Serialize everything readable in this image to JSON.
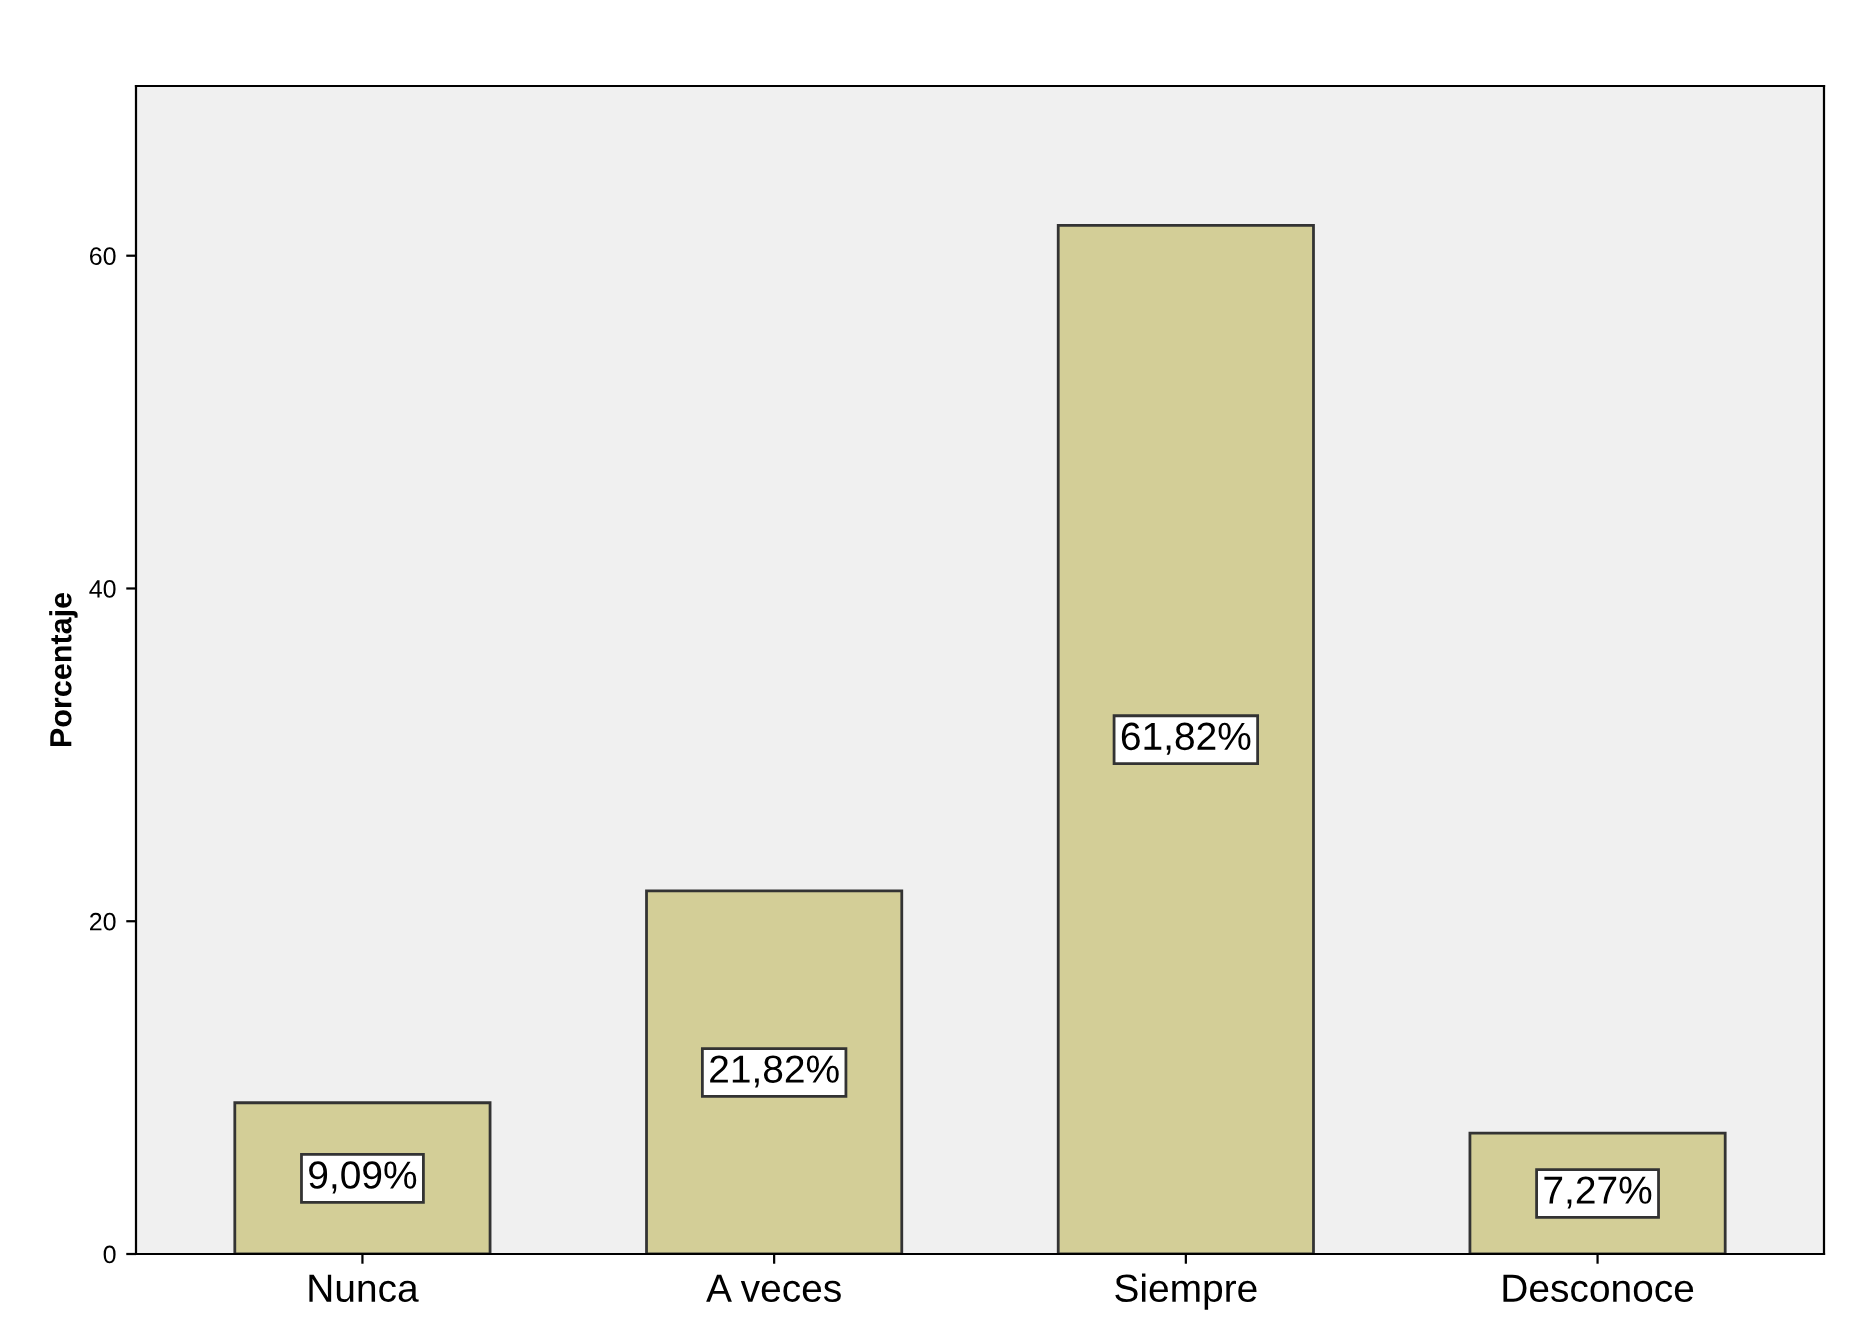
{
  "chart_data": {
    "type": "bar",
    "ylabel": "Porcentaje",
    "categories": [
      "Nunca",
      "A veces",
      "Siempre",
      "Desconoce"
    ],
    "values": [
      9.09,
      21.82,
      61.82,
      7.27
    ],
    "value_labels": [
      "9,09%",
      "21,82%",
      "61,82%",
      "7,27%"
    ],
    "color": "#d3ce97",
    "ylim": [
      0,
      70.2
    ],
    "yticks": [
      0,
      20,
      40,
      60
    ],
    "grid": false
  }
}
